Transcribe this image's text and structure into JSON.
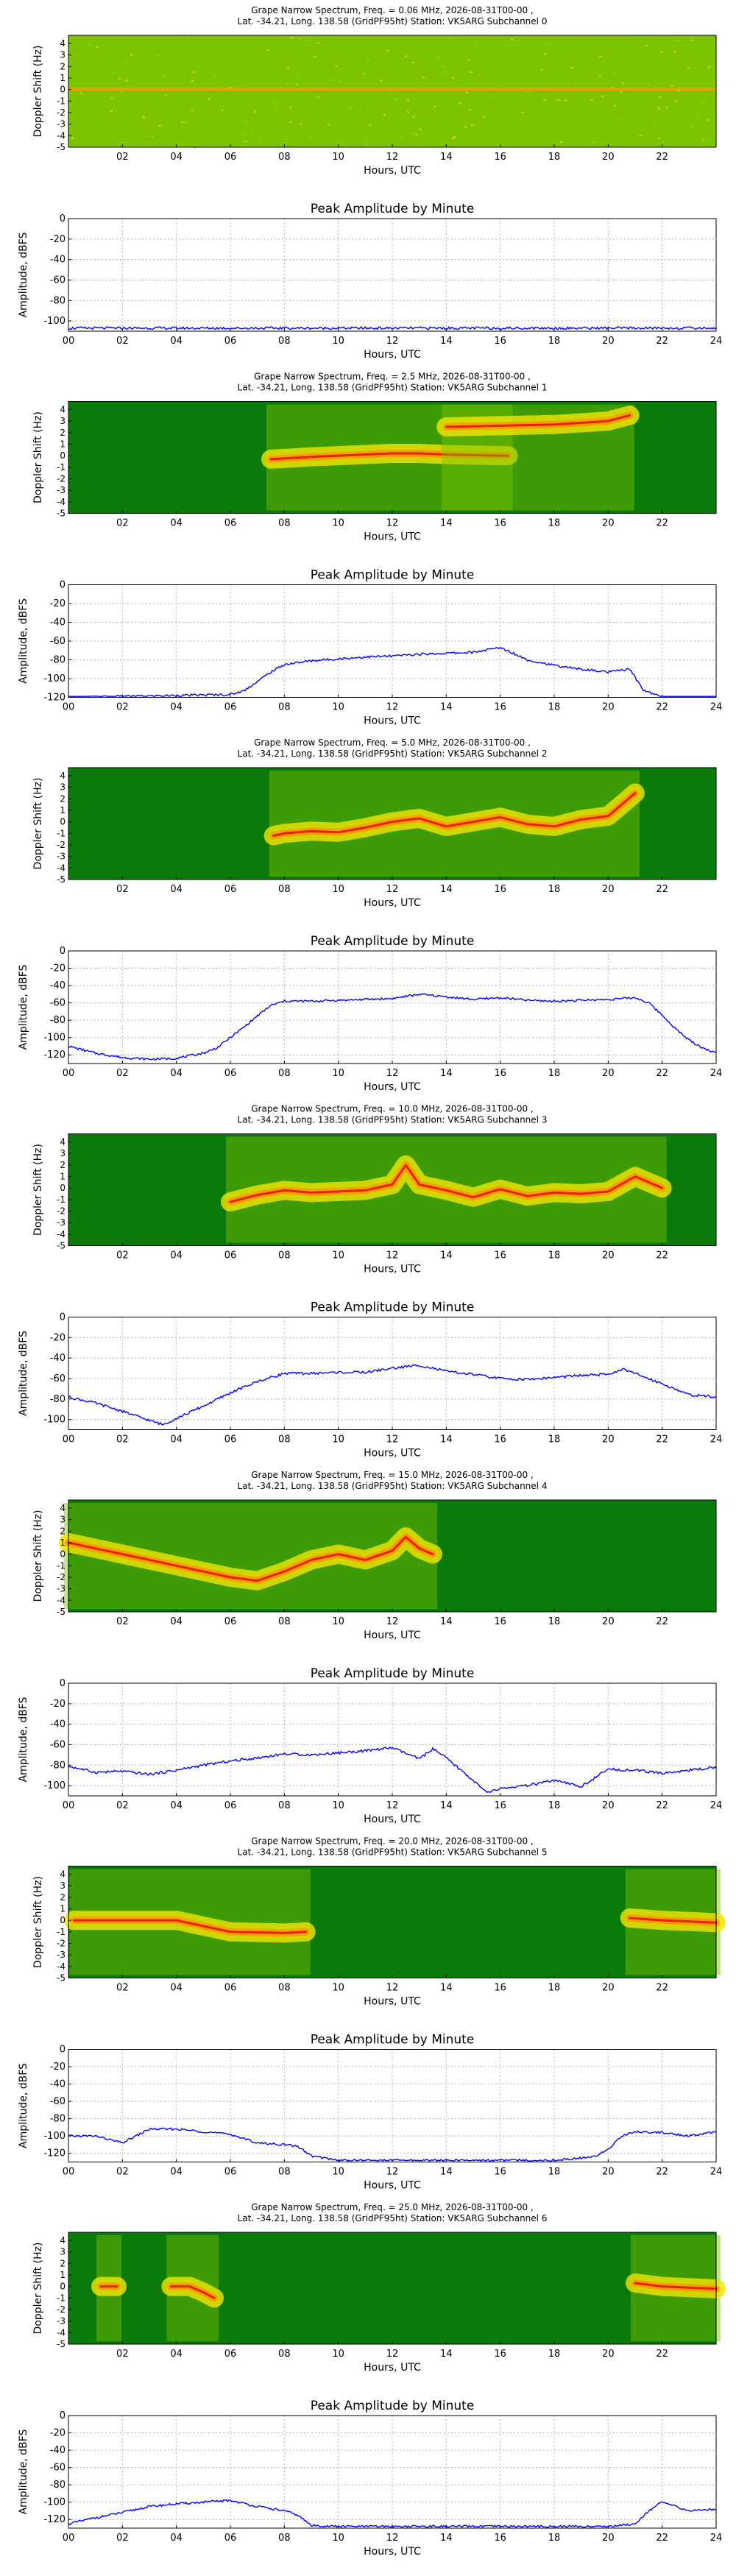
{
  "page": {
    "background": "#ffffff"
  },
  "common": {
    "spec_ylabel": "Doppler Shift (Hz)",
    "amp_ylabel": "Amplitude, dBFS",
    "xlabel": "Hours, UTC",
    "amp_title": "Peak Amplitude by Minute",
    "spec_xticks": [
      "02",
      "04",
      "06",
      "08",
      "10",
      "12",
      "14",
      "16",
      "18",
      "20",
      "22"
    ],
    "amp_xticks": [
      "00",
      "02",
      "04",
      "06",
      "08",
      "10",
      "12",
      "14",
      "16",
      "18",
      "20",
      "22",
      "24"
    ],
    "spec_yticks": [
      "4",
      "3",
      "2",
      "1",
      "0",
      "-1",
      "-2",
      "-3",
      "-4",
      "-5"
    ],
    "line_color": "#0000ff",
    "colormap": [
      "#0a7a0a",
      "#7cc400",
      "#f2e600",
      "#ff9a00",
      "#e62000"
    ]
  },
  "panels": [
    {
      "title1": "Grape Narrow Spectrum, Freq. = 0.06 MHz, 2026-08-31T00-00 ,",
      "title2": "Lat. -34.21, Long. 138.58 (GridPF95ht) Station: VK5ARG Subchannel 0",
      "amp_yticks": [
        "0",
        "-20",
        "-40",
        "-60",
        "-80",
        "-100"
      ],
      "amp_ylim": [
        -110,
        0
      ]
    },
    {
      "title1": "Grape Narrow Spectrum, Freq. = 2.5 MHz, 2026-08-31T00-00 ,",
      "title2": "Lat. -34.21, Long. 138.58 (GridPF95ht) Station: VK5ARG Subchannel 1",
      "amp_yticks": [
        "0",
        "-20",
        "-40",
        "-60",
        "-80",
        "-100",
        "-120"
      ],
      "amp_ylim": [
        -120,
        0
      ]
    },
    {
      "title1": "Grape Narrow Spectrum, Freq. = 5.0 MHz, 2026-08-31T00-00 ,",
      "title2": "Lat. -34.21, Long. 138.58 (GridPF95ht) Station: VK5ARG Subchannel 2",
      "amp_yticks": [
        "0",
        "-20",
        "-40",
        "-60",
        "-80",
        "-100",
        "-120"
      ],
      "amp_ylim": [
        -130,
        0
      ]
    },
    {
      "title1": "Grape Narrow Spectrum, Freq. = 10.0 MHz, 2026-08-31T00-00 ,",
      "title2": "Lat. -34.21, Long. 138.58 (GridPF95ht) Station: VK5ARG Subchannel 3",
      "amp_yticks": [
        "0",
        "-20",
        "-40",
        "-60",
        "-80",
        "-100"
      ],
      "amp_ylim": [
        -110,
        0
      ]
    },
    {
      "title1": "Grape Narrow Spectrum, Freq. = 15.0 MHz, 2026-08-31T00-00 ,",
      "title2": "Lat. -34.21, Long. 138.58 (GridPF95ht) Station: VK5ARG Subchannel 4",
      "amp_yticks": [
        "0",
        "-20",
        "-40",
        "-60",
        "-80",
        "-100"
      ],
      "amp_ylim": [
        -110,
        0
      ]
    },
    {
      "title1": "Grape Narrow Spectrum, Freq. = 20.0 MHz, 2026-08-31T00-00 ,",
      "title2": "Lat. -34.21, Long. 138.58 (GridPF95ht) Station: VK5ARG Subchannel 5",
      "amp_yticks": [
        "0",
        "-20",
        "-40",
        "-60",
        "-80",
        "-100",
        "-120"
      ],
      "amp_ylim": [
        -130,
        0
      ]
    },
    {
      "title1": "Grape Narrow Spectrum, Freq. = 25.0 MHz, 2026-08-31T00-00 ,",
      "title2": "Lat. -34.21, Long. 138.58 (GridPF95ht) Station: VK5ARG Subchannel 6",
      "amp_yticks": [
        "0",
        "-20",
        "-40",
        "-60",
        "-80",
        "-100",
        "-120"
      ],
      "amp_ylim": [
        -130,
        0
      ]
    }
  ],
  "chart_data": [
    {
      "type": "heatmap",
      "title": "Grape Narrow Spectrum, Freq. = 0.06 MHz, 2026-08-31T00-00 , Lat. -34.21, Long. 138.58 (GridPF95ht) Station: VK5ARG Subchannel 0",
      "xlabel": "",
      "ylabel": "Doppler Shift (Hz)",
      "xlim": [
        0,
        24
      ],
      "ylim": [
        -5,
        5
      ],
      "trace": []
    },
    {
      "type": "line",
      "title": "Peak Amplitude by Minute",
      "xlabel": "Hours, UTC",
      "ylabel": "Amplitude, dBFS",
      "xlim": [
        0,
        24
      ],
      "ylim": [
        -110,
        0
      ],
      "grid": true,
      "x": [
        0,
        2,
        4,
        6,
        8,
        10,
        12,
        14,
        16,
        18,
        20,
        22,
        24
      ],
      "y": [
        -107,
        -107,
        -107,
        -107,
        -107,
        -107,
        -107,
        -107,
        -107,
        -107,
        -107,
        -107,
        -107
      ]
    },
    {
      "type": "heatmap",
      "title": "Grape Narrow Spectrum, Freq. = 2.5 MHz, 2026-08-31T00-00 , Lat. -34.21, Long. 138.58 (GridPF95ht) Station: VK5ARG Subchannel 1",
      "xlabel": "",
      "ylabel": "Doppler Shift (Hz)",
      "xlim": [
        0,
        24
      ],
      "ylim": [
        -5,
        5
      ],
      "trace": [
        {
          "x": [
            7.5,
            9,
            10,
            12,
            13,
            14,
            16,
            16.3
          ],
          "y": [
            -0.3,
            -0.1,
            0,
            0.2,
            0.2,
            0.1,
            0,
            0
          ]
        },
        {
          "x": [
            14,
            16,
            18,
            20,
            20.8
          ],
          "y": [
            2.5,
            2.6,
            2.7,
            3.0,
            3.5
          ]
        }
      ]
    },
    {
      "type": "line",
      "title": "Peak Amplitude by Minute",
      "xlabel": "Hours, UTC",
      "ylabel": "Amplitude, dBFS",
      "xlim": [
        0,
        24
      ],
      "ylim": [
        -120,
        0
      ],
      "grid": true,
      "x": [
        0,
        2,
        4,
        6,
        6.5,
        7,
        7.5,
        8,
        9,
        10,
        11,
        12,
        13,
        14,
        15,
        16,
        16.5,
        17,
        18,
        19,
        20,
        20.8,
        21.3,
        22,
        23,
        24
      ],
      "y": [
        -120,
        -119,
        -118,
        -117,
        -113,
        -103,
        -93,
        -85,
        -81,
        -79,
        -77,
        -76,
        -74,
        -73,
        -72,
        -67,
        -73,
        -80,
        -86,
        -90,
        -93,
        -90,
        -112,
        -120,
        -120,
        -120
      ]
    },
    {
      "type": "heatmap",
      "title": "Grape Narrow Spectrum, Freq. = 5.0 MHz, 2026-08-31T00-00 , Lat. -34.21, Long. 138.58 (GridPF95ht) Station: VK5ARG Subchannel 2",
      "xlabel": "",
      "ylabel": "Doppler Shift (Hz)",
      "xlim": [
        0,
        24
      ],
      "ylim": [
        -5,
        5
      ],
      "trace": [
        {
          "x": [
            7.6,
            8,
            9,
            10,
            11,
            12,
            13,
            14,
            15,
            16,
            17,
            18,
            19,
            20,
            20.5,
            21
          ],
          "y": [
            -1.2,
            -1.0,
            -0.8,
            -0.9,
            -0.5,
            0,
            0.3,
            -0.4,
            0,
            0.4,
            -0.2,
            -0.4,
            0.2,
            0.5,
            1.5,
            2.5
          ]
        }
      ]
    },
    {
      "type": "line",
      "title": "Peak Amplitude by Minute",
      "xlabel": "Hours, UTC",
      "ylabel": "Amplitude, dBFS",
      "xlim": [
        0,
        24
      ],
      "ylim": [
        -130,
        0
      ],
      "grid": true,
      "x": [
        0,
        1,
        2,
        3,
        4,
        5,
        5.5,
        6,
        6.5,
        7,
        7.5,
        8,
        9,
        10,
        11,
        12,
        13,
        14,
        15,
        16,
        17,
        18,
        19,
        20,
        21,
        21.5,
        22,
        22.5,
        23,
        23.5,
        24
      ],
      "y": [
        -110,
        -118,
        -123,
        -125,
        -124,
        -118,
        -112,
        -100,
        -88,
        -75,
        -63,
        -58,
        -58,
        -57,
        -56,
        -55,
        -50,
        -53,
        -56,
        -54,
        -57,
        -58,
        -57,
        -56,
        -54,
        -60,
        -74,
        -90,
        -103,
        -112,
        -118
      ]
    },
    {
      "type": "heatmap",
      "title": "Grape Narrow Spectrum, Freq. = 10.0 MHz, 2026-08-31T00-00 , Lat. -34.21, Long. 138.58 (GridPF95ht) Station: VK5ARG Subchannel 3",
      "xlabel": "",
      "ylabel": "Doppler Shift (Hz)",
      "xlim": [
        0,
        24
      ],
      "ylim": [
        -5,
        5
      ],
      "trace": [
        {
          "x": [
            6,
            7,
            8,
            9,
            10,
            11,
            12,
            12.5,
            13,
            14,
            15,
            16,
            17,
            18,
            19,
            20,
            21,
            22
          ],
          "y": [
            -1.2,
            -0.6,
            -0.2,
            -0.4,
            -0.3,
            -0.2,
            0.3,
            2.0,
            0.3,
            -0.2,
            -0.8,
            -0.1,
            -0.7,
            -0.4,
            -0.5,
            -0.3,
            1.0,
            0
          ]
        }
      ]
    },
    {
      "type": "line",
      "title": "Peak Amplitude by Minute",
      "xlabel": "Hours, UTC",
      "ylabel": "Amplitude, dBFS",
      "xlim": [
        0,
        24
      ],
      "ylim": [
        -110,
        0
      ],
      "grid": true,
      "x": [
        0,
        1,
        2,
        3,
        3.5,
        4,
        5,
        6,
        7,
        8,
        9,
        10,
        11,
        12,
        13,
        14,
        15,
        16,
        17,
        18,
        19,
        20,
        20.5,
        21,
        22,
        23,
        24
      ],
      "y": [
        -78,
        -84,
        -92,
        -101,
        -105,
        -99,
        -87,
        -74,
        -63,
        -55,
        -55,
        -54,
        -54,
        -50,
        -47,
        -53,
        -56,
        -60,
        -61,
        -59,
        -57,
        -56,
        -51,
        -55,
        -65,
        -76,
        -78
      ]
    },
    {
      "type": "heatmap",
      "title": "Grape Narrow Spectrum, Freq. = 15.0 MHz, 2026-08-31T00-00 , Lat. -34.21, Long. 138.58 (GridPF95ht) Station: VK5ARG Subchannel 4",
      "xlabel": "",
      "ylabel": "Doppler Shift (Hz)",
      "xlim": [
        0,
        24
      ],
      "ylim": [
        -5,
        5
      ],
      "trace": [
        {
          "x": [
            0,
            2,
            4,
            6,
            7,
            8,
            9,
            10,
            11,
            12,
            12.5,
            13,
            13.5
          ],
          "y": [
            1.0,
            0,
            -1.0,
            -2.0,
            -2.3,
            -1.5,
            -0.5,
            0,
            -0.5,
            0.3,
            1.5,
            0.5,
            0
          ]
        }
      ]
    },
    {
      "type": "line",
      "title": "Peak Amplitude by Minute",
      "xlabel": "Hours, UTC",
      "ylabel": "Amplitude, dBFS",
      "xlim": [
        0,
        24
      ],
      "ylim": [
        -110,
        0
      ],
      "grid": true,
      "x": [
        0,
        1,
        2,
        3,
        4,
        5,
        6,
        7,
        8,
        9,
        10,
        11,
        12,
        13,
        13.5,
        14,
        15,
        15.5,
        16,
        17,
        18,
        19,
        20,
        21,
        22,
        23,
        24
      ],
      "y": [
        -81,
        -87,
        -86,
        -89,
        -85,
        -80,
        -76,
        -73,
        -69,
        -70,
        -68,
        -66,
        -63,
        -74,
        -64,
        -73,
        -95,
        -107,
        -103,
        -100,
        -95,
        -101,
        -84,
        -85,
        -88,
        -85,
        -82
      ]
    },
    {
      "type": "heatmap",
      "title": "Grape Narrow Spectrum, Freq. = 20.0 MHz, 2026-08-31T00-00 , Lat. -34.21, Long. 138.58 (GridPF95ht) Station: VK5ARG Subchannel 5",
      "xlabel": "",
      "ylabel": "Doppler Shift (Hz)",
      "xlim": [
        0,
        24
      ],
      "ylim": [
        -5,
        5
      ],
      "trace": [
        {
          "x": [
            0.2,
            2,
            4,
            5,
            6,
            8,
            8.8
          ],
          "y": [
            0,
            0,
            0,
            -0.5,
            -1.0,
            -1.1,
            -1.0
          ]
        },
        {
          "x": [
            20.8,
            22,
            24
          ],
          "y": [
            0.2,
            0,
            -0.2
          ]
        }
      ]
    },
    {
      "type": "line",
      "title": "Peak Amplitude by Minute",
      "xlabel": "Hours, UTC",
      "ylabel": "Amplitude, dBFS",
      "xlim": [
        0,
        24
      ],
      "ylim": [
        -130,
        0
      ],
      "grid": true,
      "x": [
        0,
        1,
        2,
        3,
        4,
        5,
        6,
        7,
        8,
        8.5,
        9,
        10,
        12,
        14,
        16,
        18,
        19.5,
        20,
        20.5,
        21,
        22,
        23,
        24
      ],
      "y": [
        -100,
        -100,
        -108,
        -92,
        -92,
        -95,
        -98,
        -108,
        -110,
        -112,
        -123,
        -128,
        -128,
        -128,
        -128,
        -128,
        -124,
        -115,
        -100,
        -95,
        -96,
        -100,
        -95
      ]
    },
    {
      "type": "heatmap",
      "title": "Grape Narrow Spectrum, Freq. = 25.0 MHz, 2026-08-31T00-00 , Lat. -34.21, Long. 138.58 (GridPF95ht) Station: VK5ARG Subchannel 6",
      "xlabel": "",
      "ylabel": "Doppler Shift (Hz)",
      "xlim": [
        0,
        24
      ],
      "ylim": [
        -5,
        5
      ],
      "trace": [
        {
          "x": [
            1.2,
            1.8
          ],
          "y": [
            0,
            0
          ]
        },
        {
          "x": [
            3.8,
            4.5,
            5,
            5.4
          ],
          "y": [
            0,
            0,
            -0.5,
            -1.0
          ]
        },
        {
          "x": [
            21,
            22,
            24
          ],
          "y": [
            0.3,
            0,
            -0.2
          ]
        }
      ]
    },
    {
      "type": "line",
      "title": "Peak Amplitude by Minute",
      "xlabel": "Hours, UTC",
      "ylabel": "Amplitude, dBFS",
      "xlim": [
        0,
        24
      ],
      "ylim": [
        -130,
        0
      ],
      "grid": true,
      "x": [
        0,
        1,
        2,
        3,
        4,
        5,
        6,
        7,
        8,
        8.5,
        9,
        10,
        12,
        14,
        16,
        18,
        20,
        21,
        21.5,
        22,
        22.5,
        23,
        24
      ],
      "y": [
        -125,
        -118,
        -112,
        -105,
        -102,
        -100,
        -98,
        -105,
        -110,
        -115,
        -127,
        -128,
        -128,
        -128,
        -128,
        -128,
        -128,
        -125,
        -110,
        -100,
        -105,
        -110,
        -108
      ]
    }
  ]
}
